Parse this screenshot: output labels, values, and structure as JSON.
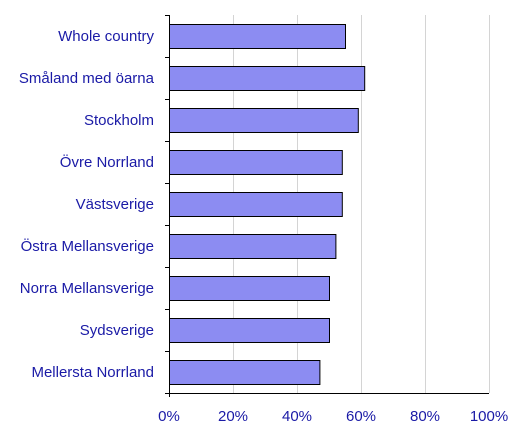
{
  "chart_data": {
    "type": "bar",
    "orientation": "horizontal",
    "categories": [
      "Whole country",
      "Småland med öarna",
      "Stockholm",
      "Övre Norrland",
      "Västsverige",
      "Östra Mellansverige",
      "Norra Mellansverige",
      "Sydsverige",
      "Mellersta Norrland"
    ],
    "values": [
      55,
      61,
      59,
      54,
      54,
      52,
      50,
      50,
      47
    ],
    "xlim": [
      0,
      100
    ],
    "xticks": [
      0,
      20,
      40,
      60,
      80,
      100
    ],
    "xtick_labels": [
      "0%",
      "20%",
      "40%",
      "60%",
      "80%",
      "100%"
    ],
    "title": "",
    "xlabel": "",
    "ylabel": "",
    "grid": "vertical",
    "legend": "none",
    "colors": {
      "bar_fill": "#8c8cf2",
      "bar_stroke": "#000000",
      "label_text": "#1a1aa6",
      "grid": "#d4d4d4"
    }
  }
}
